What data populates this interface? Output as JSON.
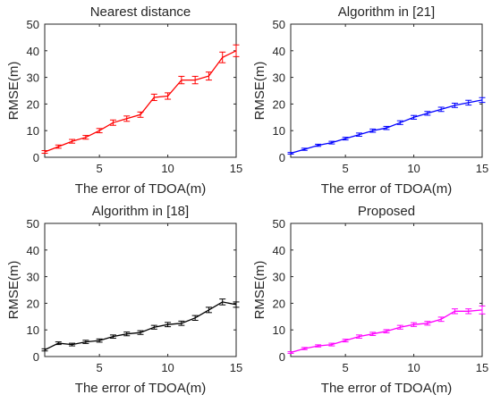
{
  "chart_data": [
    {
      "type": "line",
      "title": "Nearest distance",
      "xlabel": "The error of TDOA(m)",
      "ylabel": "RMSE(m)",
      "xlim": [
        1,
        15
      ],
      "ylim": [
        0,
        50
      ],
      "xticks": [
        5,
        10,
        15
      ],
      "yticks": [
        0,
        10,
        20,
        30,
        40,
        50
      ],
      "grid": false,
      "error_bars": true,
      "color": "#ff0000",
      "series": [
        {
          "x": [
            1,
            2,
            3,
            4,
            5,
            6,
            7,
            8,
            9,
            10,
            11,
            12,
            13,
            14,
            15
          ],
          "values": [
            2,
            4,
            6,
            7.5,
            10,
            13,
            14.5,
            16,
            22.5,
            23,
            29,
            29,
            30.5,
            37.5,
            40
          ],
          "errors": [
            0.5,
            0.6,
            0.7,
            0.7,
            0.8,
            1.0,
            1.0,
            1.0,
            1.2,
            1.2,
            1.4,
            1.4,
            1.5,
            2.0,
            2.2
          ]
        }
      ]
    },
    {
      "type": "line",
      "title": "Algorithm in [21]",
      "xlabel": "The error of TDOA(m)",
      "ylabel": "RMSE(m)",
      "xlim": [
        1,
        15
      ],
      "ylim": [
        0,
        50
      ],
      "xticks": [
        5,
        10,
        15
      ],
      "yticks": [
        0,
        10,
        20,
        30,
        40,
        50
      ],
      "grid": false,
      "error_bars": true,
      "color": "#0000ff",
      "series": [
        {
          "x": [
            1,
            2,
            3,
            4,
            5,
            6,
            7,
            8,
            9,
            10,
            11,
            12,
            13,
            14,
            15
          ],
          "values": [
            1.5,
            3,
            4.5,
            5.5,
            7,
            8.5,
            10,
            11,
            13,
            15,
            16.5,
            18,
            19.5,
            20.5,
            21.5
          ],
          "errors": [
            0.3,
            0.4,
            0.4,
            0.5,
            0.5,
            0.6,
            0.6,
            0.6,
            0.7,
            0.7,
            0.7,
            0.8,
            0.8,
            0.9,
            0.9
          ]
        }
      ]
    },
    {
      "type": "line",
      "title": "Algorithm in [18]",
      "xlabel": "The error of TDOA(m)",
      "ylabel": "RMSE(m)",
      "xlim": [
        1,
        15
      ],
      "ylim": [
        0,
        50
      ],
      "xticks": [
        5,
        10,
        15
      ],
      "yticks": [
        0,
        10,
        20,
        30,
        40,
        50
      ],
      "grid": false,
      "error_bars": true,
      "color": "#000000",
      "series": [
        {
          "x": [
            1,
            2,
            3,
            4,
            5,
            6,
            7,
            8,
            9,
            10,
            11,
            12,
            13,
            14,
            15
          ],
          "values": [
            2.5,
            5,
            4.5,
            5.5,
            6,
            7.5,
            8.5,
            9,
            11,
            12,
            12.5,
            14.5,
            17.5,
            20.5,
            19.5
          ],
          "errors": [
            0.4,
            0.5,
            0.5,
            0.6,
            0.6,
            0.6,
            0.7,
            0.7,
            0.7,
            0.8,
            0.8,
            0.9,
            1.0,
            1.1,
            1.0
          ]
        }
      ]
    },
    {
      "type": "line",
      "title": "Proposed",
      "xlabel": "The error of TDOA(m)",
      "ylabel": "RMSE(m)",
      "xlim": [
        1,
        15
      ],
      "ylim": [
        0,
        50
      ],
      "xticks": [
        5,
        10,
        15
      ],
      "yticks": [
        0,
        10,
        20,
        30,
        40,
        50
      ],
      "grid": false,
      "error_bars": true,
      "color": "#ff00ff",
      "series": [
        {
          "x": [
            1,
            2,
            3,
            4,
            5,
            6,
            7,
            8,
            9,
            10,
            11,
            12,
            13,
            14,
            15
          ],
          "values": [
            1.5,
            3,
            4,
            4.5,
            6,
            7.5,
            8.5,
            9.5,
            11,
            12,
            12.5,
            14,
            17,
            17,
            17.5
          ],
          "errors": [
            0.3,
            0.4,
            0.4,
            0.5,
            0.5,
            0.6,
            0.6,
            0.6,
            0.7,
            0.7,
            0.7,
            0.8,
            0.9,
            0.9,
            1.5
          ]
        }
      ]
    }
  ]
}
